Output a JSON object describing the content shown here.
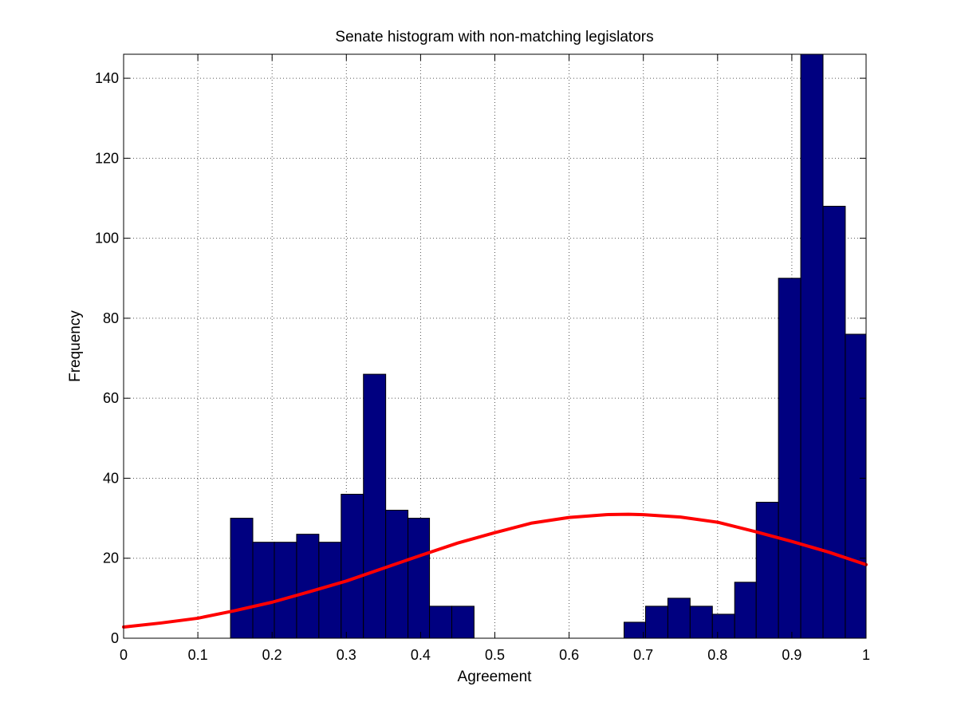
{
  "chart_data": {
    "type": "bar",
    "title": "Senate  histogram with non-matching legislators",
    "xlabel": "Agreement",
    "ylabel": "Frequency",
    "xlim": [
      0,
      1
    ],
    "ylim": [
      0,
      146
    ],
    "grid": true,
    "xticks": [
      0,
      0.1,
      0.2,
      0.3,
      0.4,
      0.5,
      0.6,
      0.7,
      0.8,
      0.9,
      1
    ],
    "xtick_labels": [
      "0",
      "0.1",
      "0.2",
      "0.3",
      "0.4",
      "0.5",
      "0.6",
      "0.7",
      "0.8",
      "0.9",
      "1"
    ],
    "yticks": [
      0,
      20,
      40,
      60,
      80,
      100,
      120,
      140
    ],
    "ytick_labels": [
      "0",
      "20",
      "40",
      "60",
      "80",
      "100",
      "120",
      "140"
    ],
    "bar_color": "#000080",
    "bins": [
      {
        "start": 0.144,
        "end": 0.174,
        "value": 30
      },
      {
        "start": 0.174,
        "end": 0.203,
        "value": 24
      },
      {
        "start": 0.203,
        "end": 0.233,
        "value": 24
      },
      {
        "start": 0.233,
        "end": 0.263,
        "value": 26
      },
      {
        "start": 0.263,
        "end": 0.293,
        "value": 24
      },
      {
        "start": 0.293,
        "end": 0.323,
        "value": 36
      },
      {
        "start": 0.323,
        "end": 0.353,
        "value": 66
      },
      {
        "start": 0.353,
        "end": 0.383,
        "value": 32
      },
      {
        "start": 0.383,
        "end": 0.412,
        "value": 30
      },
      {
        "start": 0.412,
        "end": 0.442,
        "value": 8
      },
      {
        "start": 0.442,
        "end": 0.472,
        "value": 8
      },
      {
        "start": 0.674,
        "end": 0.703,
        "value": 4
      },
      {
        "start": 0.703,
        "end": 0.733,
        "value": 8
      },
      {
        "start": 0.733,
        "end": 0.763,
        "value": 10
      },
      {
        "start": 0.763,
        "end": 0.793,
        "value": 8
      },
      {
        "start": 0.793,
        "end": 0.823,
        "value": 6
      },
      {
        "start": 0.823,
        "end": 0.852,
        "value": 14
      },
      {
        "start": 0.852,
        "end": 0.882,
        "value": 34
      },
      {
        "start": 0.882,
        "end": 0.912,
        "value": 90
      },
      {
        "start": 0.912,
        "end": 0.942,
        "value": 146
      },
      {
        "start": 0.942,
        "end": 0.972,
        "value": 108
      },
      {
        "start": 0.972,
        "end": 1.0,
        "value": 76
      }
    ],
    "curve": {
      "color": "#ff0000",
      "x": [
        0,
        0.05,
        0.1,
        0.15,
        0.2,
        0.25,
        0.3,
        0.35,
        0.4,
        0.45,
        0.5,
        0.55,
        0.6,
        0.65,
        0.68,
        0.7,
        0.75,
        0.8,
        0.85,
        0.9,
        0.95,
        1.0
      ],
      "y": [
        2.8,
        3.8,
        5.0,
        6.9,
        9.0,
        11.6,
        14.3,
        17.5,
        20.7,
        23.8,
        26.4,
        28.8,
        30.2,
        30.9,
        31.0,
        30.9,
        30.3,
        29.0,
        26.7,
        24.2,
        21.5,
        18.4
      ]
    }
  }
}
